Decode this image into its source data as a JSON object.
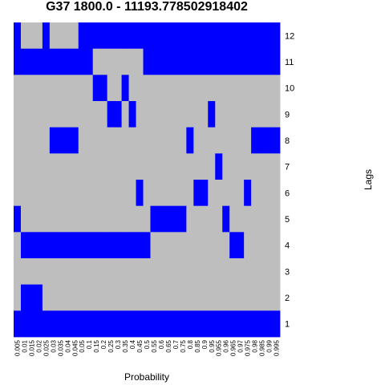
{
  "chart_data": {
    "type": "heatmap",
    "title": "G37 1800.0 - 11193.778502918402",
    "xlabel": "Probability",
    "ylabel": "Lags",
    "x": [
      "0.005",
      "0.01",
      "0.015",
      "0.02",
      "0.025",
      "0.03",
      "0.035",
      "0.04",
      "0.045",
      "0.05",
      "0.1",
      "0.15",
      "0.2",
      "0.25",
      "0.3",
      "0.35",
      "0.4",
      "0.45",
      "0.5",
      "0.55",
      "0.6",
      "0.65",
      "0.7",
      "0.75",
      "0.8",
      "0.85",
      "0.9",
      "0.95",
      "0.955",
      "0.96",
      "0.965",
      "0.97",
      "0.975",
      "0.98",
      "0.985",
      "0.99",
      "0.995"
    ],
    "y": [
      "12",
      "11",
      "10",
      "9",
      "8",
      "7",
      "6",
      "5",
      "4",
      "3",
      "2",
      "1"
    ],
    "colors": {
      "selected": "#0000ff",
      "not_selected": "#bebebe"
    },
    "legend": "none",
    "matrix": [
      [
        1,
        0,
        0,
        0,
        1,
        0,
        0,
        0,
        0,
        1,
        1,
        1,
        1,
        1,
        1,
        1,
        1,
        1,
        1,
        1,
        1,
        1,
        1,
        1,
        1,
        1,
        1,
        1,
        1,
        1,
        1,
        1,
        1,
        1,
        1,
        1,
        1
      ],
      [
        1,
        1,
        1,
        1,
        1,
        1,
        1,
        1,
        1,
        1,
        1,
        0,
        0,
        0,
        0,
        0,
        0,
        0,
        1,
        1,
        1,
        1,
        1,
        1,
        1,
        1,
        1,
        1,
        1,
        1,
        1,
        1,
        1,
        1,
        1,
        1,
        1
      ],
      [
        0,
        0,
        0,
        0,
        0,
        0,
        0,
        0,
        0,
        0,
        0,
        1,
        1,
        0,
        0,
        1,
        0,
        0,
        0,
        0,
        0,
        0,
        0,
        0,
        0,
        0,
        0,
        0,
        0,
        0,
        0,
        0,
        0,
        0,
        0,
        0,
        0
      ],
      [
        0,
        0,
        0,
        0,
        0,
        0,
        0,
        0,
        0,
        0,
        0,
        0,
        0,
        1,
        1,
        0,
        1,
        0,
        0,
        0,
        0,
        0,
        0,
        0,
        0,
        0,
        0,
        1,
        0,
        0,
        0,
        0,
        0,
        0,
        0,
        0,
        0
      ],
      [
        0,
        0,
        0,
        0,
        0,
        1,
        1,
        1,
        1,
        0,
        0,
        0,
        0,
        0,
        0,
        0,
        0,
        0,
        0,
        0,
        0,
        0,
        0,
        0,
        1,
        0,
        0,
        0,
        0,
        0,
        0,
        0,
        0,
        1,
        1,
        1,
        1
      ],
      [
        0,
        0,
        0,
        0,
        0,
        0,
        0,
        0,
        0,
        0,
        0,
        0,
        0,
        0,
        0,
        0,
        0,
        0,
        0,
        0,
        0,
        0,
        0,
        0,
        0,
        0,
        0,
        0,
        1,
        0,
        0,
        0,
        0,
        0,
        0,
        0,
        0
      ],
      [
        0,
        0,
        0,
        0,
        0,
        0,
        0,
        0,
        0,
        0,
        0,
        0,
        0,
        0,
        0,
        0,
        0,
        1,
        0,
        0,
        0,
        0,
        0,
        0,
        0,
        1,
        1,
        0,
        0,
        0,
        0,
        0,
        1,
        0,
        0,
        0,
        0
      ],
      [
        1,
        0,
        0,
        0,
        0,
        0,
        0,
        0,
        0,
        0,
        0,
        0,
        0,
        0,
        0,
        0,
        0,
        0,
        0,
        1,
        1,
        1,
        1,
        1,
        0,
        0,
        0,
        0,
        0,
        1,
        0,
        0,
        0,
        0,
        0,
        0,
        0
      ],
      [
        0,
        1,
        1,
        1,
        1,
        1,
        1,
        1,
        1,
        1,
        1,
        1,
        1,
        1,
        1,
        1,
        1,
        1,
        1,
        0,
        0,
        0,
        0,
        0,
        0,
        0,
        0,
        0,
        0,
        0,
        1,
        1,
        0,
        0,
        0,
        0,
        0
      ],
      [
        0,
        0,
        0,
        0,
        0,
        0,
        0,
        0,
        0,
        0,
        0,
        0,
        0,
        0,
        0,
        0,
        0,
        0,
        0,
        0,
        0,
        0,
        0,
        0,
        0,
        0,
        0,
        0,
        0,
        0,
        0,
        0,
        0,
        0,
        0,
        0,
        0
      ],
      [
        0,
        1,
        1,
        1,
        0,
        0,
        0,
        0,
        0,
        0,
        0,
        0,
        0,
        0,
        0,
        0,
        0,
        0,
        0,
        0,
        0,
        0,
        0,
        0,
        0,
        0,
        0,
        0,
        0,
        0,
        0,
        0,
        0,
        0,
        0,
        0,
        0
      ],
      [
        1,
        1,
        1,
        1,
        1,
        1,
        1,
        1,
        1,
        1,
        1,
        1,
        1,
        1,
        1,
        1,
        1,
        1,
        1,
        1,
        1,
        1,
        1,
        1,
        1,
        1,
        1,
        1,
        1,
        1,
        1,
        1,
        1,
        1,
        1,
        1,
        1
      ]
    ]
  }
}
